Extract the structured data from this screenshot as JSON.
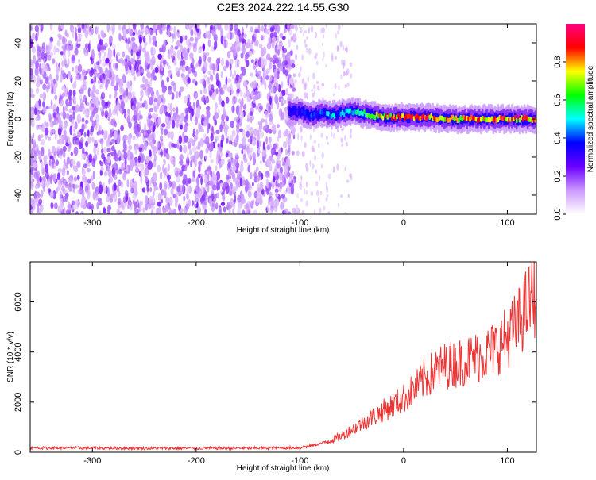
{
  "title": "C2E3.2024.222.14.55.G30",
  "chart_data": [
    {
      "type": "heatmap",
      "xlabel": "Height of straight line (km)",
      "ylabel": "Frequency (Hz)",
      "xlim": [
        -360,
        128
      ],
      "ylim": [
        -50,
        50
      ],
      "xticks": [
        -300,
        -200,
        -100,
        0,
        100
      ],
      "yticks": [
        -40,
        -20,
        0,
        20,
        40
      ],
      "colorbar": {
        "label": "Normalized spectral amplitude",
        "range": [
          0,
          1
        ],
        "ticks": [
          0.0,
          0.2,
          0.4,
          0.6,
          0.8
        ],
        "tick_labels": [
          "0.0",
          "0.2",
          "0.4",
          "0.6",
          "0.8"
        ],
        "colormap": [
          "#ffffff",
          "#cc99ff",
          "#6a00ff",
          "#0000ff",
          "#00ffff",
          "#00ff00",
          "#ffff00",
          "#ff0000",
          "#ff0080"
        ]
      },
      "noise_region_x": [
        -360,
        -105
      ],
      "signal_track": {
        "x": [
          -110,
          -100,
          -90,
          -80,
          -70,
          -60,
          -50,
          -40,
          -30,
          -20,
          -10,
          0,
          20,
          40,
          60,
          80,
          100,
          128
        ],
        "y": [
          4,
          4,
          2,
          3,
          2,
          3,
          4,
          3,
          2,
          1,
          1,
          1,
          1,
          0,
          0,
          0,
          0,
          0
        ],
        "amplitude": [
          0.35,
          0.35,
          0.45,
          0.4,
          0.5,
          0.5,
          0.55,
          0.6,
          0.7,
          0.8,
          0.85,
          0.9,
          0.9,
          0.8,
          0.85,
          0.8,
          0.9,
          0.9
        ]
      }
    },
    {
      "type": "line",
      "xlabel": "Height of straight line (km)",
      "ylabel": "SNR (10 * v/v)",
      "xlim": [
        -360,
        128
      ],
      "ylim": [
        0,
        7600
      ],
      "xticks": [
        -300,
        -200,
        -100,
        0,
        100
      ],
      "yticks": [
        0,
        2000,
        4000,
        6000
      ],
      "color": "#ee3333",
      "series": [
        {
          "x": [
            -360,
            -300,
            -250,
            -200,
            -150,
            -100,
            -90,
            -80,
            -70,
            -60,
            -50,
            -40,
            -30,
            -20,
            -10,
            0,
            10,
            20,
            30,
            40,
            50,
            60,
            70,
            80,
            90,
            100,
            110,
            120,
            128
          ],
          "values": [
            170,
            170,
            160,
            160,
            160,
            180,
            250,
            350,
            480,
            650,
            900,
            1150,
            1400,
            1650,
            1900,
            2150,
            2500,
            2900,
            3250,
            3450,
            3550,
            3650,
            3800,
            3950,
            4200,
            4600,
            5100,
            5900,
            6400
          ]
        }
      ]
    }
  ]
}
